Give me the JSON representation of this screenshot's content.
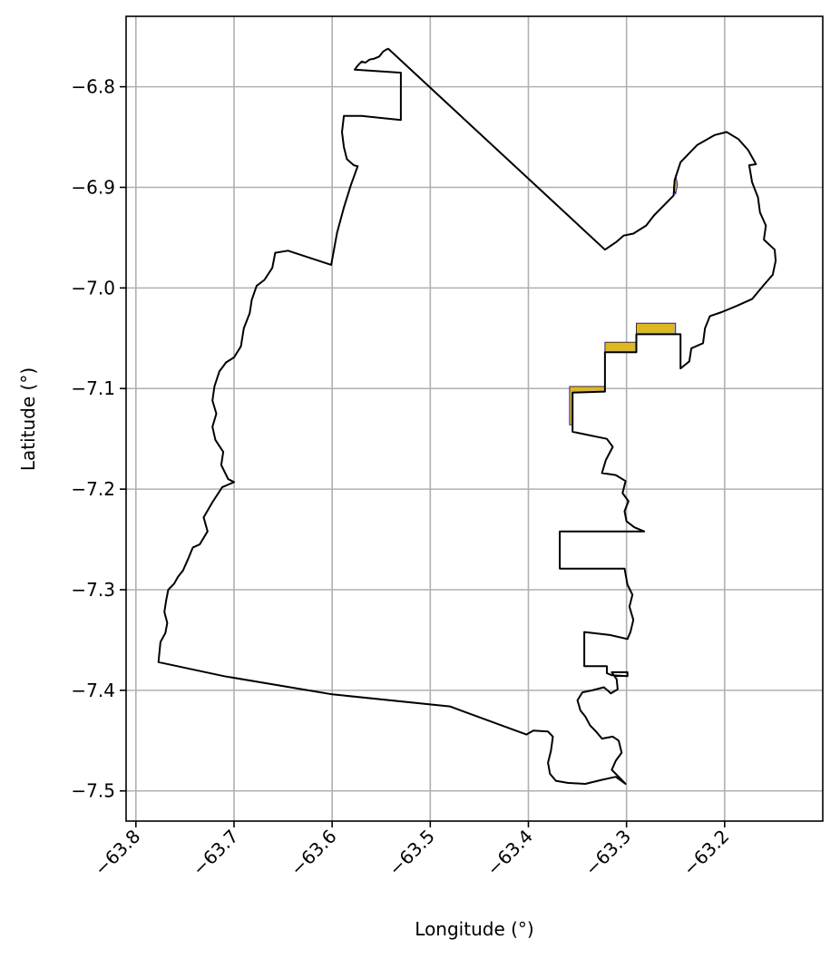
{
  "chart_data": {
    "type": "map",
    "xlabel": "Longitude (°)",
    "ylabel": "Latitude (°)",
    "xlim": [
      -63.81,
      -63.1
    ],
    "ylim": [
      -7.53,
      -6.73
    ],
    "xticks": [
      -63.8,
      -63.7,
      -63.6,
      -63.5,
      -63.4,
      -63.3,
      -63.2
    ],
    "xtick_labels": [
      "−63.8",
      "−63.7",
      "−63.6",
      "−63.5",
      "−63.4",
      "−63.3",
      "−63.2"
    ],
    "yticks": [
      -6.8,
      -6.9,
      -7.0,
      -7.1,
      -7.2,
      -7.3,
      -7.4,
      -7.5
    ],
    "ytick_labels": [
      "−6.8",
      "−6.9",
      "−7.0",
      "−7.1",
      "−7.2",
      "−7.3",
      "−7.4",
      "−7.5"
    ],
    "grid": true,
    "boundary_color": "#000000",
    "overlap_fill_color": "#ddb81e",
    "overlap_edge_color": "#2222aa",
    "boundary": [
      [
        -63.543,
        -6.762
      ],
      [
        -63.548,
        -6.765
      ],
      [
        -63.552,
        -6.77
      ],
      [
        -63.557,
        -6.772
      ],
      [
        -63.562,
        -6.773
      ],
      [
        -63.566,
        -6.776
      ],
      [
        -63.57,
        -6.775
      ],
      [
        -63.574,
        -6.779
      ],
      [
        -63.577,
        -6.783
      ],
      [
        -63.53,
        -6.786
      ],
      [
        -63.53,
        -6.833
      ],
      [
        -63.57,
        -6.829
      ],
      [
        -63.588,
        -6.829
      ],
      [
        -63.59,
        -6.845
      ],
      [
        -63.588,
        -6.86
      ],
      [
        -63.585,
        -6.872
      ],
      [
        -63.578,
        -6.878
      ],
      [
        -63.574,
        -6.879
      ],
      [
        -63.581,
        -6.898
      ],
      [
        -63.588,
        -6.92
      ],
      [
        -63.595,
        -6.945
      ],
      [
        -63.601,
        -6.977
      ],
      [
        -63.645,
        -6.963
      ],
      [
        -63.658,
        -6.965
      ],
      [
        -63.661,
        -6.98
      ],
      [
        -63.669,
        -6.992
      ],
      [
        -63.677,
        -6.998
      ],
      [
        -63.682,
        -7.012
      ],
      [
        -63.684,
        -7.025
      ],
      [
        -63.69,
        -7.04
      ],
      [
        -63.693,
        -7.058
      ],
      [
        -63.7,
        -7.069
      ],
      [
        -63.708,
        -7.074
      ],
      [
        -63.715,
        -7.083
      ],
      [
        -63.72,
        -7.098
      ],
      [
        -63.722,
        -7.112
      ],
      [
        -63.718,
        -7.125
      ],
      [
        -63.722,
        -7.138
      ],
      [
        -63.719,
        -7.151
      ],
      [
        -63.711,
        -7.163
      ],
      [
        -63.713,
        -7.176
      ],
      [
        -63.706,
        -7.19
      ],
      [
        -63.7,
        -7.193
      ],
      [
        -63.712,
        -7.198
      ],
      [
        -63.722,
        -7.213
      ],
      [
        -63.731,
        -7.228
      ],
      [
        -63.727,
        -7.242
      ],
      [
        -63.735,
        -7.255
      ],
      [
        -63.742,
        -7.258
      ],
      [
        -63.747,
        -7.27
      ],
      [
        -63.752,
        -7.281
      ],
      [
        -63.757,
        -7.287
      ],
      [
        -63.761,
        -7.294
      ],
      [
        -63.767,
        -7.3
      ],
      [
        -63.769,
        -7.31
      ],
      [
        -63.771,
        -7.322
      ],
      [
        -63.768,
        -7.333
      ],
      [
        -63.77,
        -7.343
      ],
      [
        -63.775,
        -7.352
      ],
      [
        -63.776,
        -7.362
      ],
      [
        -63.777,
        -7.372
      ],
      [
        -63.71,
        -7.386
      ],
      [
        -63.6,
        -7.404
      ],
      [
        -63.48,
        -7.416
      ],
      [
        -63.402,
        -7.444
      ],
      [
        -63.395,
        -7.44
      ],
      [
        -63.38,
        -7.441
      ],
      [
        -63.375,
        -7.446
      ],
      [
        -63.377,
        -7.46
      ],
      [
        -63.38,
        -7.472
      ],
      [
        -63.378,
        -7.483
      ],
      [
        -63.372,
        -7.49
      ],
      [
        -63.36,
        -7.492
      ],
      [
        -63.342,
        -7.493
      ],
      [
        -63.325,
        -7.489
      ],
      [
        -63.311,
        -7.486
      ],
      [
        -63.301,
        -7.493
      ],
      [
        -63.309,
        -7.485
      ],
      [
        -63.315,
        -7.479
      ],
      [
        -63.311,
        -7.47
      ],
      [
        -63.305,
        -7.462
      ],
      [
        -63.308,
        -7.45
      ],
      [
        -63.314,
        -7.446
      ],
      [
        -63.325,
        -7.448
      ],
      [
        -63.331,
        -7.441
      ],
      [
        -63.337,
        -7.435
      ],
      [
        -63.342,
        -7.426
      ],
      [
        -63.347,
        -7.42
      ],
      [
        -63.35,
        -7.41
      ],
      [
        -63.345,
        -7.402
      ],
      [
        -63.335,
        -7.4
      ],
      [
        -63.323,
        -7.397
      ],
      [
        -63.316,
        -7.403
      ],
      [
        -63.309,
        -7.399
      ],
      [
        -63.31,
        -7.389
      ],
      [
        -63.315,
        -7.382
      ],
      [
        -63.299,
        -7.382
      ],
      [
        -63.299,
        -7.386
      ],
      [
        -63.315,
        -7.385
      ],
      [
        -63.32,
        -7.383
      ],
      [
        -63.32,
        -7.376
      ],
      [
        -63.343,
        -7.376
      ],
      [
        -63.343,
        -7.342
      ],
      [
        -63.317,
        -7.345
      ],
      [
        -63.299,
        -7.349
      ],
      [
        -63.296,
        -7.342
      ],
      [
        -63.293,
        -7.33
      ],
      [
        -63.297,
        -7.317
      ],
      [
        -63.294,
        -7.305
      ],
      [
        -63.299,
        -7.295
      ],
      [
        -63.302,
        -7.279
      ],
      [
        -63.368,
        -7.279
      ],
      [
        -63.368,
        -7.242
      ],
      [
        -63.282,
        -7.242
      ],
      [
        -63.292,
        -7.238
      ],
      [
        -63.3,
        -7.232
      ],
      [
        -63.302,
        -7.222
      ],
      [
        -63.298,
        -7.212
      ],
      [
        -63.304,
        -7.204
      ],
      [
        -63.301,
        -7.192
      ],
      [
        -63.311,
        -7.186
      ],
      [
        -63.325,
        -7.184
      ],
      [
        -63.321,
        -7.171
      ],
      [
        -63.314,
        -7.158
      ],
      [
        -63.32,
        -7.15
      ],
      [
        -63.355,
        -7.143
      ],
      [
        -63.355,
        -7.104
      ],
      [
        -63.322,
        -7.103
      ],
      [
        -63.322,
        -7.064
      ],
      [
        -63.29,
        -7.064
      ],
      [
        -63.29,
        -7.046
      ],
      [
        -63.245,
        -7.046
      ],
      [
        -63.245,
        -7.08
      ],
      [
        -63.236,
        -7.073
      ],
      [
        -63.234,
        -7.06
      ],
      [
        -63.222,
        -7.055
      ],
      [
        -63.22,
        -7.04
      ],
      [
        -63.215,
        -7.028
      ],
      [
        -63.203,
        -7.024
      ],
      [
        -63.188,
        -7.018
      ],
      [
        -63.172,
        -7.011
      ],
      [
        -63.16,
        -6.997
      ],
      [
        -63.151,
        -6.987
      ],
      [
        -63.148,
        -6.973
      ],
      [
        -63.149,
        -6.962
      ],
      [
        -63.16,
        -6.952
      ],
      [
        -63.158,
        -6.938
      ],
      [
        -63.164,
        -6.925
      ],
      [
        -63.166,
        -6.91
      ],
      [
        -63.172,
        -6.895
      ],
      [
        -63.175,
        -6.878
      ],
      [
        -63.168,
        -6.877
      ],
      [
        -63.176,
        -6.863
      ],
      [
        -63.186,
        -6.852
      ],
      [
        -63.198,
        -6.845
      ],
      [
        -63.21,
        -6.848
      ],
      [
        -63.228,
        -6.858
      ],
      [
        -63.245,
        -6.875
      ],
      [
        -63.251,
        -6.893
      ],
      [
        -63.252,
        -6.908
      ],
      [
        -63.262,
        -6.918
      ],
      [
        -63.272,
        -6.928
      ],
      [
        -63.28,
        -6.938
      ],
      [
        -63.293,
        -6.946
      ],
      [
        -63.303,
        -6.948
      ],
      [
        -63.31,
        -6.954
      ],
      [
        -63.322,
        -6.962
      ],
      [
        -63.543,
        -6.762
      ]
    ],
    "overlap_areas": [
      [
        [
          -63.358,
          -7.098
        ],
        [
          -63.322,
          -7.098
        ],
        [
          -63.322,
          -7.054
        ],
        [
          -63.29,
          -7.054
        ],
        [
          -63.29,
          -7.035
        ],
        [
          -63.25,
          -7.035
        ],
        [
          -63.25,
          -7.046
        ],
        [
          -63.29,
          -7.046
        ],
        [
          -63.29,
          -7.064
        ],
        [
          -63.322,
          -7.064
        ],
        [
          -63.322,
          -7.103
        ],
        [
          -63.355,
          -7.104
        ],
        [
          -63.355,
          -7.136
        ],
        [
          -63.358,
          -7.136
        ]
      ],
      [
        [
          -63.25,
          -6.888
        ],
        [
          -63.252,
          -6.9
        ],
        [
          -63.25,
          -6.907
        ],
        [
          -63.248,
          -6.897
        ]
      ]
    ]
  }
}
